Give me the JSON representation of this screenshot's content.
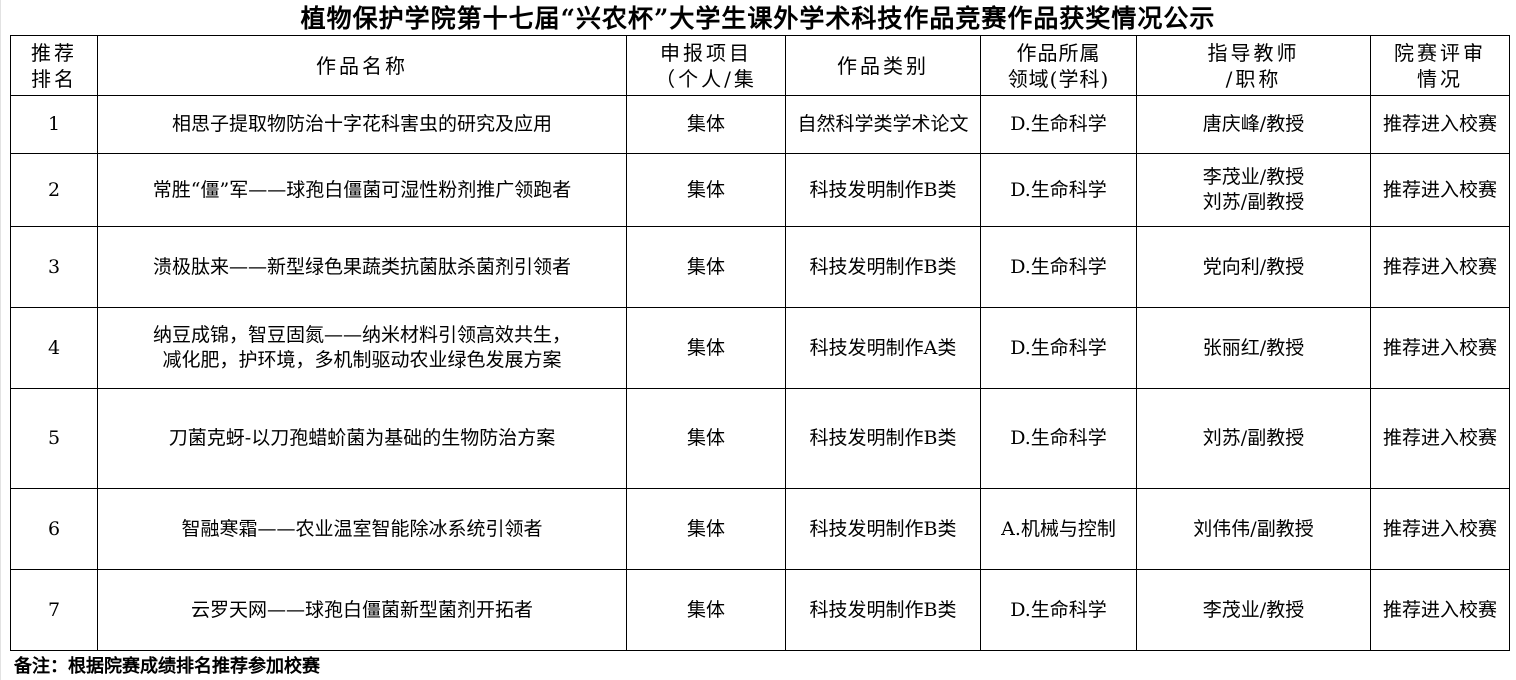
{
  "title": "植物保护学院第十七届“兴农杯”大学生课外学术科技作品竞赛作品获奖情况公示",
  "headers": {
    "rank": [
      "推荐",
      "排名"
    ],
    "name": "作品名称",
    "type": [
      "申报项目",
      "（个人/集"
    ],
    "category": "作品类别",
    "field": [
      "作品所属",
      "领域(学科)"
    ],
    "advisor": [
      "指导教师",
      "/职称"
    ],
    "result": [
      "院赛评审",
      "情况"
    ]
  },
  "rows": [
    {
      "rank": "1",
      "name": [
        "相思子提取物防治十字花科害虫的研究及应用"
      ],
      "type": "集体",
      "category": "自然科学类学术论文",
      "field": "D.生命科学",
      "advisor": [
        "唐庆峰/教授"
      ],
      "result": "推荐进入校赛"
    },
    {
      "rank": "2",
      "name": [
        "常胜“僵”军——球孢白僵菌可湿性粉剂推广领跑者"
      ],
      "type": "集体",
      "category": "科技发明制作B类",
      "field": "D.生命科学",
      "advisor": [
        "李茂业/教授",
        "刘苏/副教授"
      ],
      "result": "推荐进入校赛"
    },
    {
      "rank": "3",
      "name": [
        "溃极肽来——新型绿色果蔬类抗菌肽杀菌剂引领者"
      ],
      "type": "集体",
      "category": "科技发明制作B类",
      "field": "D.生命科学",
      "advisor": [
        "党向利/教授"
      ],
      "result": "推荐进入校赛"
    },
    {
      "rank": "4",
      "name": [
        "纳豆成锦，智豆固氮——纳米材料引领高效共生，",
        "减化肥，护环境，多机制驱动农业绿色发展方案"
      ],
      "type": "集体",
      "category": "科技发明制作A类",
      "field": "D.生命科学",
      "advisor": [
        "张丽红/教授"
      ],
      "result": "推荐进入校赛"
    },
    {
      "rank": "5",
      "name": [
        "刀菌克蚜-以刀孢蜡蚧菌为基础的生物防治方案"
      ],
      "type": "集体",
      "category": "科技发明制作B类",
      "field": "D.生命科学",
      "advisor": [
        "刘苏/副教授"
      ],
      "result": "推荐进入校赛"
    },
    {
      "rank": "6",
      "name": [
        "智融寒霜——农业温室智能除冰系统引领者"
      ],
      "type": "集体",
      "category": "科技发明制作B类",
      "field": "A.机械与控制",
      "advisor": [
        "刘伟伟/副教授"
      ],
      "result": "推荐进入校赛"
    },
    {
      "rank": "7",
      "name": [
        "云罗天网——球孢白僵菌新型菌剂开拓者"
      ],
      "type": "集体",
      "category": "科技发明制作B类",
      "field": "D.生命科学",
      "advisor": [
        "李茂业/教授"
      ],
      "result": "推荐进入校赛"
    }
  ],
  "note": "备注：根据院赛成绩排名推荐参加校赛"
}
